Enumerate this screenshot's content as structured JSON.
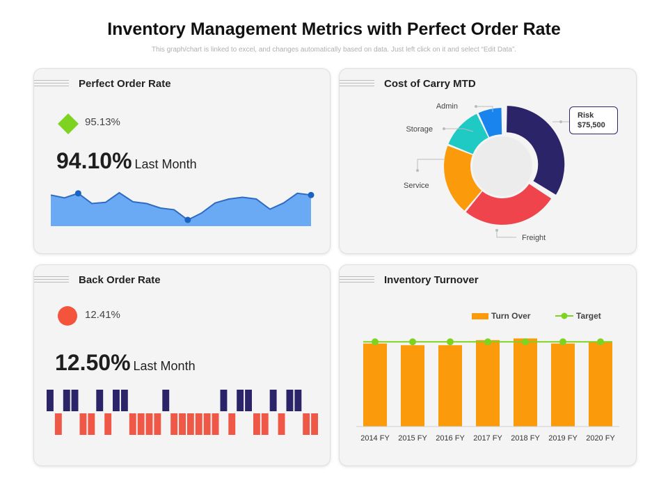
{
  "page": {
    "title": "Inventory Management Metrics with Perfect Order Rate",
    "subtitle": "This graph/chart is linked to excel, and changes automatically based on data. Just left click on it and select “Edit Data”."
  },
  "colors": {
    "diamond": "#7ed321",
    "circle": "#f4533c",
    "area_fill": "#6aaaf5",
    "area_line": "#2f6bc3",
    "navy": "#2b2469",
    "red_bar": "#ef5746",
    "orange": "#fb9a0a",
    "target": "#7ed321"
  },
  "perfect_order": {
    "title": "Perfect Order Rate",
    "current": "95.13%",
    "last_month_value": "94.10%",
    "last_month_label": "Last Month"
  },
  "cost_of_carry": {
    "title": "Cost of Carry MTD",
    "risk_label": "Risk",
    "risk_value": "$75,500"
  },
  "back_order": {
    "title": "Back Order Rate",
    "current": "12.41%",
    "last_month_value": "12.50%",
    "last_month_label": "Last Month"
  },
  "inventory_turnover": {
    "title": "Inventory Turnover"
  },
  "chart_data": [
    {
      "id": "perfect-order-trend",
      "type": "area",
      "title": "Perfect Order Rate",
      "x": [
        1,
        2,
        3,
        4,
        5,
        6,
        7,
        8,
        9,
        10,
        11,
        12,
        13,
        14,
        15,
        16,
        17,
        18,
        19,
        20
      ],
      "values": [
        96.0,
        95.5,
        96.3,
        94.5,
        94.7,
        96.4,
        94.8,
        94.5,
        93.7,
        93.4,
        91.6,
        92.8,
        94.6,
        95.3,
        95.6,
        95.3,
        93.5,
        94.6,
        96.3,
        96.0
      ],
      "markers": [
        2,
        10,
        19
      ],
      "ylim": [
        90.5,
        98
      ]
    },
    {
      "id": "cost-of-carry-donut",
      "type": "pie",
      "title": "Cost of Carry MTD",
      "categories": [
        "Risk",
        "Freight",
        "Service",
        "Storage",
        "Admin"
      ],
      "values": [
        34,
        27,
        20,
        12,
        7
      ],
      "colors": [
        "#2b2469",
        "#f0444d",
        "#fb9a0a",
        "#1fcac4",
        "#1a84ee"
      ],
      "annotations": [
        "Admin",
        "Storage",
        "Service",
        "Freight"
      ]
    },
    {
      "id": "back-order-pattern",
      "type": "bar",
      "title": "Back Order Rate",
      "values": [
        1,
        -1,
        1,
        1,
        -1,
        -1,
        1,
        -1,
        1,
        1,
        -1,
        -1,
        -1,
        -1,
        1,
        -1,
        -1,
        -1,
        -1,
        -1,
        -1,
        1,
        -1,
        1,
        1,
        -1,
        -1,
        1,
        -1,
        1,
        1,
        -1,
        -1
      ],
      "ylim": [
        -1,
        1
      ]
    },
    {
      "id": "inventory-turnover",
      "type": "bar",
      "title": "Inventory Turnover",
      "categories": [
        "2014 FY",
        "2015 FY",
        "2016 FY",
        "2017 FY",
        "2018 FY",
        "2019 FY",
        "2020 FY"
      ],
      "series": [
        {
          "name": "Turn Over",
          "values": [
            98,
            96,
            96,
            102,
            104,
            98,
            100
          ]
        },
        {
          "name": "Target",
          "values": [
            100,
            100,
            100,
            100,
            100,
            100,
            100
          ]
        }
      ],
      "ylim": [
        0,
        115
      ]
    }
  ]
}
